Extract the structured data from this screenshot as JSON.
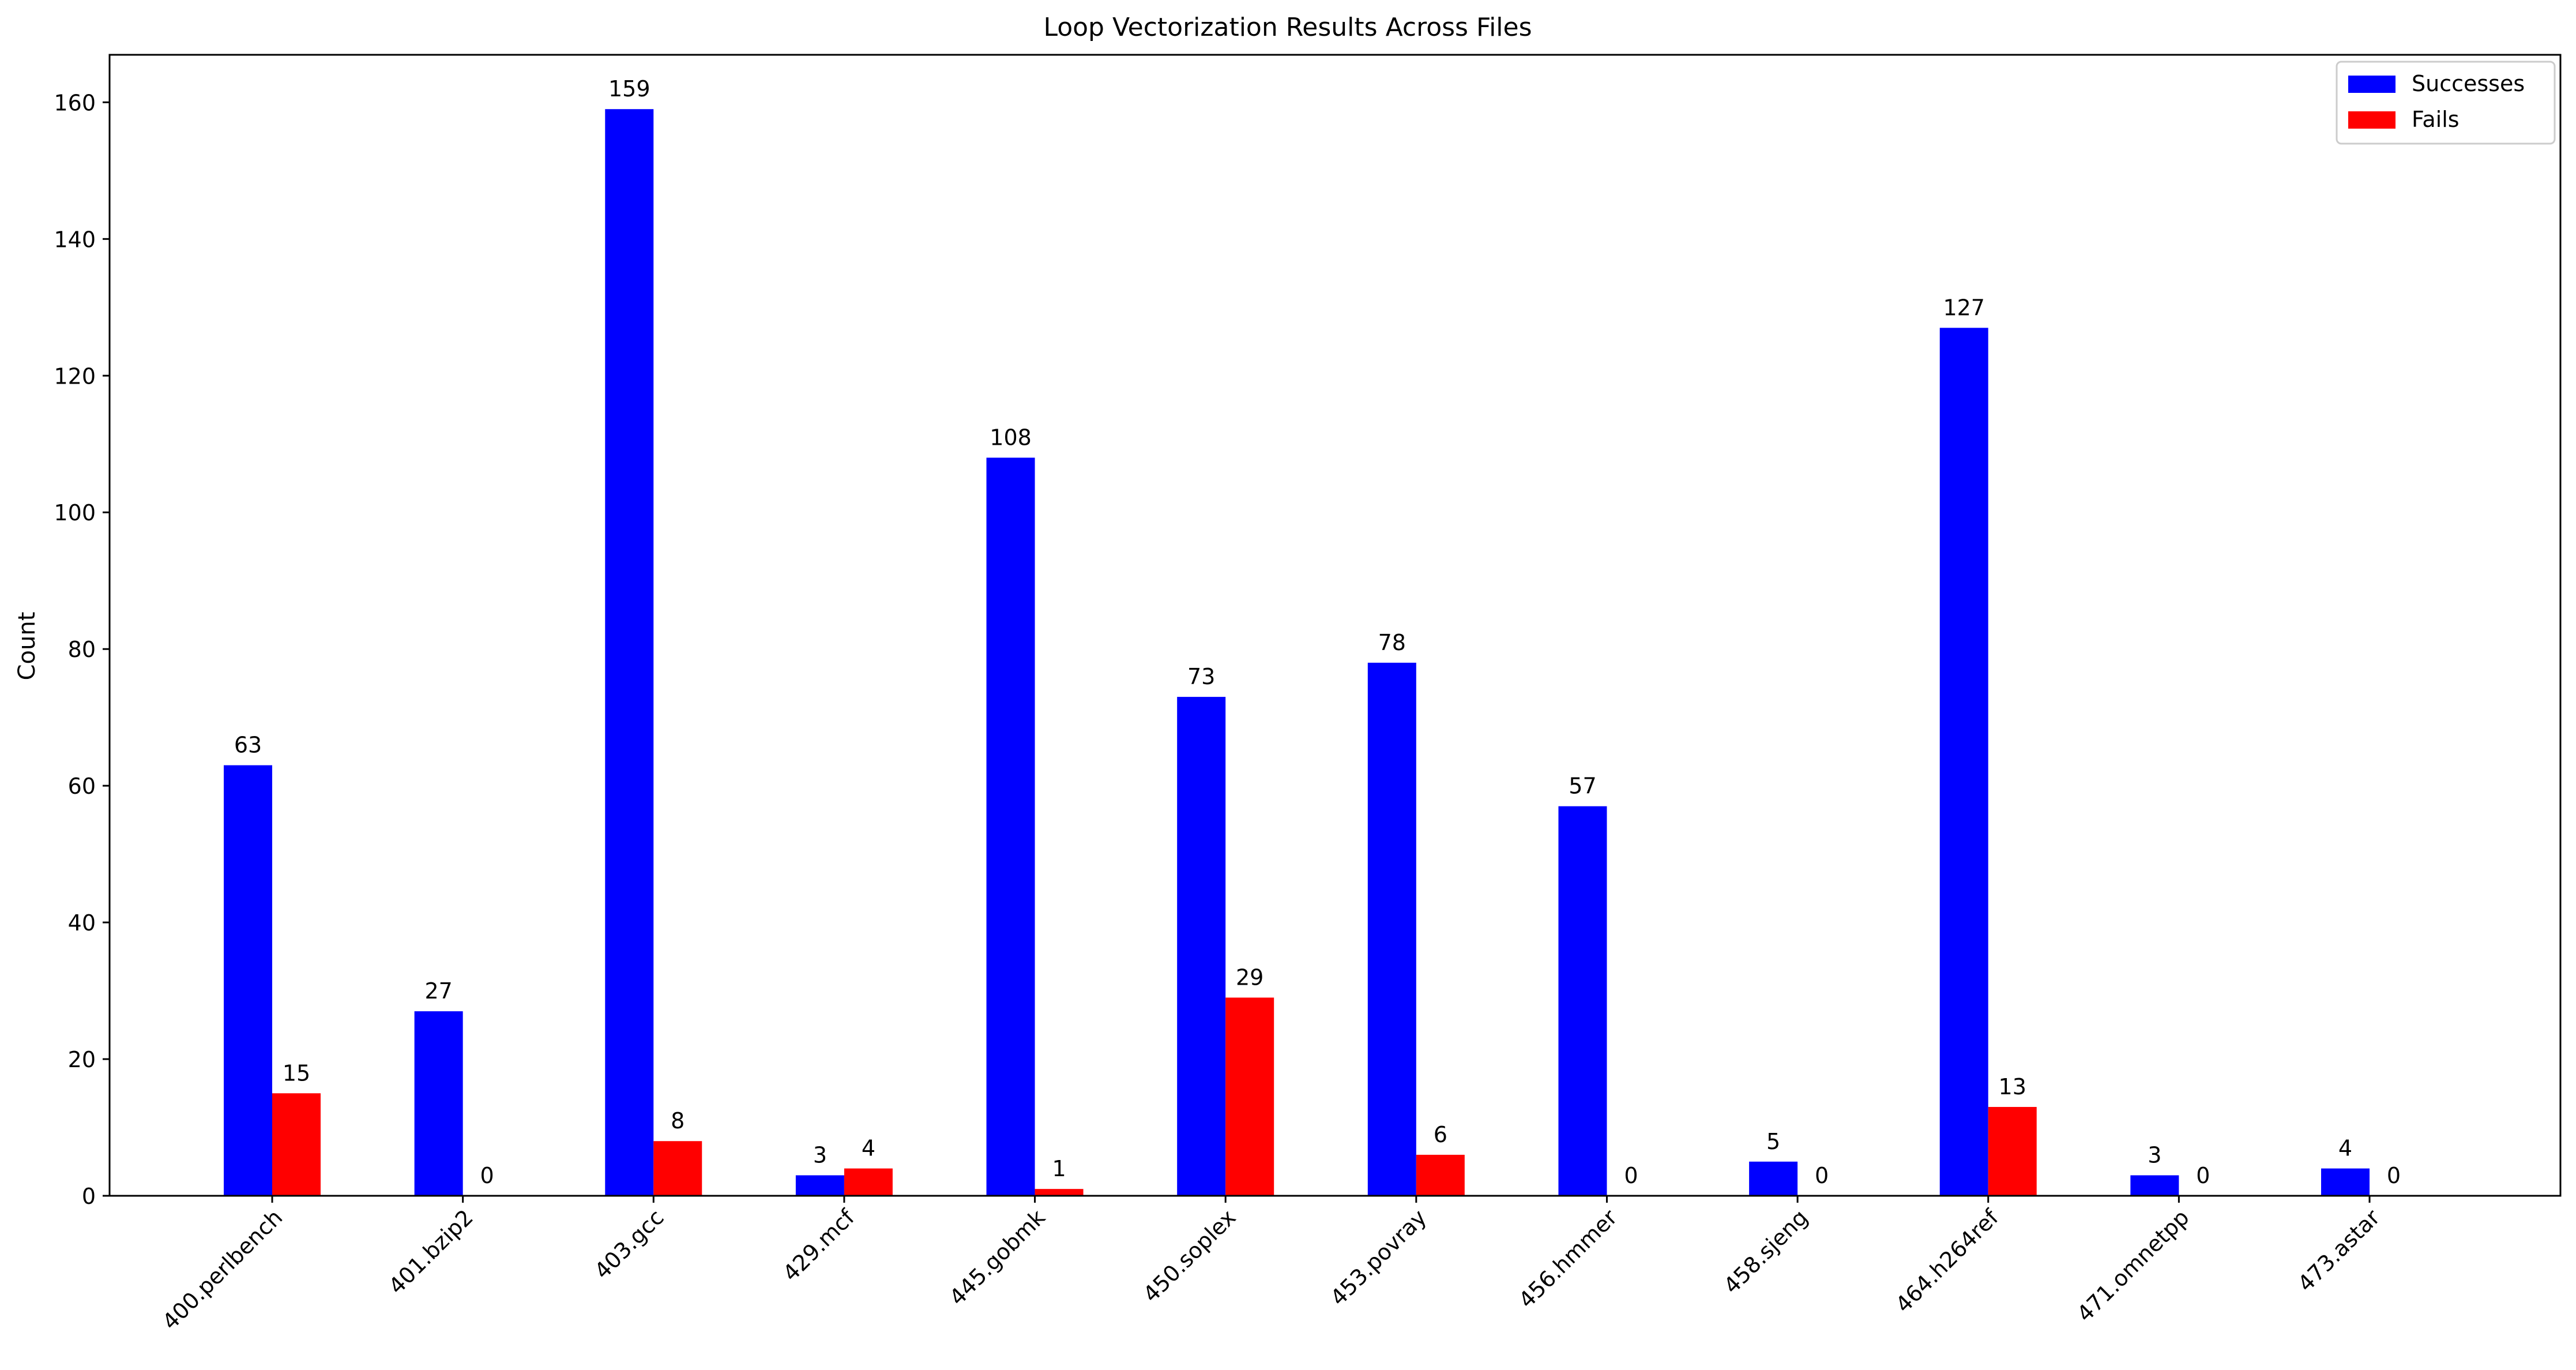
{
  "chart_data": {
    "type": "bar",
    "title": "Loop Vectorization Results Across Files",
    "xlabel": "",
    "ylabel": "Count",
    "ylim": [
      0,
      166.95
    ],
    "yticks": [
      0,
      20,
      40,
      60,
      80,
      100,
      120,
      140,
      160
    ],
    "grid": false,
    "legend_position": "top-right",
    "categories": [
      "400.perlbench",
      "401.bzip2",
      "403.gcc",
      "429.mcf",
      "445.gobmk",
      "450.soplex",
      "453.povray",
      "456.hmmer",
      "458.sjeng",
      "464.h264ref",
      "471.omnetpp",
      "473.astar"
    ],
    "series": [
      {
        "name": "Successes",
        "color": "#0000ff",
        "values": [
          63,
          27,
          159,
          3,
          108,
          73,
          78,
          57,
          5,
          127,
          3,
          4
        ]
      },
      {
        "name": "Fails",
        "color": "#ff0000",
        "values": [
          15,
          0,
          8,
          4,
          1,
          29,
          6,
          0,
          0,
          13,
          0,
          0
        ]
      }
    ]
  }
}
